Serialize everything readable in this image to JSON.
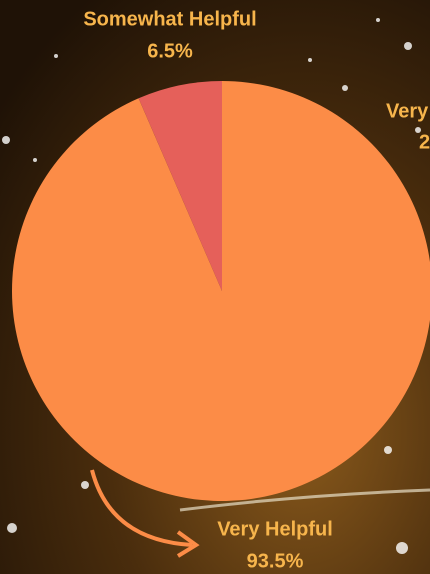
{
  "chart_data": {
    "type": "pie",
    "categories": [
      "Very Helpful",
      "Somewhat Helpful"
    ],
    "values": [
      93.5,
      6.5
    ],
    "value_labels": [
      "93.5%",
      "6.5%"
    ],
    "colors": [
      "#fc8c47",
      "#e5605a"
    ],
    "annotations": [
      "Very",
      "2"
    ]
  }
}
